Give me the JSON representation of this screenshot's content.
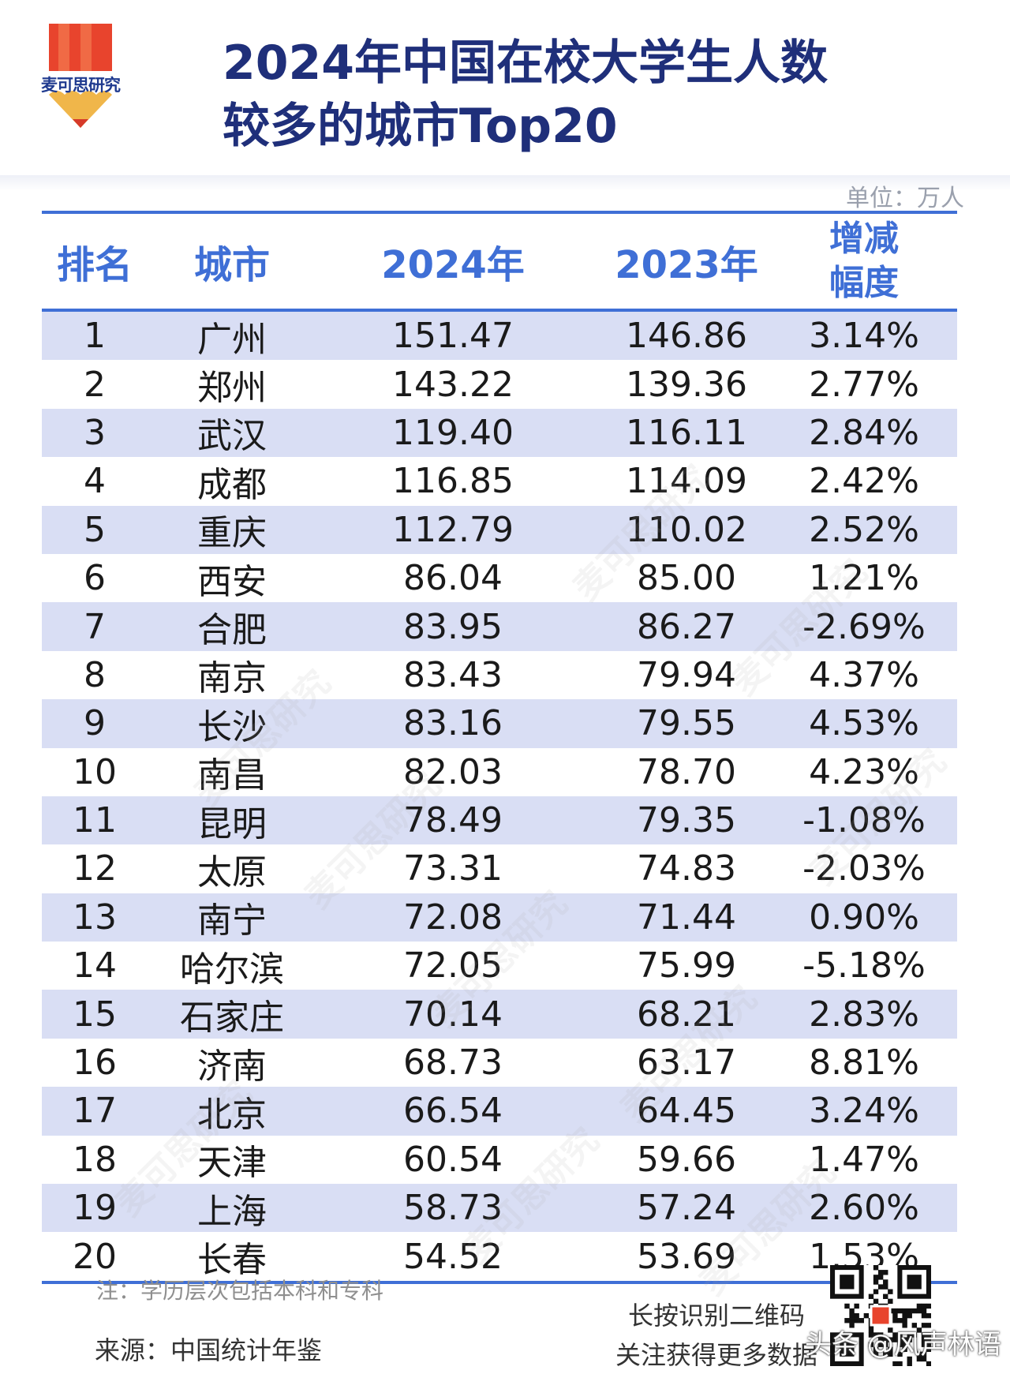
{
  "brand": {
    "logo_text": "麦可思研究",
    "colors": {
      "logo_top": "#e8442d",
      "logo_mid": "#f0b64a",
      "logo_tip": "#d63a2a",
      "accent": "#3f6fd6",
      "title": "#1f2f7a",
      "row_shade": "#d9def4"
    }
  },
  "header": {
    "title_line1": "2024年中国在校大学生人数",
    "title_line2": "较多的城市Top20",
    "unit": "单位：万人"
  },
  "table": {
    "columns": [
      "排名",
      "城市",
      "2024年",
      "2023年",
      "增减幅度"
    ],
    "change_header_line1": "增减",
    "change_header_line2": "幅度",
    "rows": [
      {
        "rank": "1",
        "city": "广州",
        "y2024": "151.47",
        "y2023": "146.86",
        "change": "3.14%"
      },
      {
        "rank": "2",
        "city": "郑州",
        "y2024": "143.22",
        "y2023": "139.36",
        "change": "2.77%"
      },
      {
        "rank": "3",
        "city": "武汉",
        "y2024": "119.40",
        "y2023": "116.11",
        "change": "2.84%"
      },
      {
        "rank": "4",
        "city": "成都",
        "y2024": "116.85",
        "y2023": "114.09",
        "change": "2.42%"
      },
      {
        "rank": "5",
        "city": "重庆",
        "y2024": "112.79",
        "y2023": "110.02",
        "change": "2.52%"
      },
      {
        "rank": "6",
        "city": "西安",
        "y2024": "86.04",
        "y2023": "85.00",
        "change": "1.21%"
      },
      {
        "rank": "7",
        "city": "合肥",
        "y2024": "83.95",
        "y2023": "86.27",
        "change": "-2.69%"
      },
      {
        "rank": "8",
        "city": "南京",
        "y2024": "83.43",
        "y2023": "79.94",
        "change": "4.37%"
      },
      {
        "rank": "9",
        "city": "长沙",
        "y2024": "83.16",
        "y2023": "79.55",
        "change": "4.53%"
      },
      {
        "rank": "10",
        "city": "南昌",
        "y2024": "82.03",
        "y2023": "78.70",
        "change": "4.23%"
      },
      {
        "rank": "11",
        "city": "昆明",
        "y2024": "78.49",
        "y2023": "79.35",
        "change": "-1.08%"
      },
      {
        "rank": "12",
        "city": "太原",
        "y2024": "73.31",
        "y2023": "74.83",
        "change": "-2.03%"
      },
      {
        "rank": "13",
        "city": "南宁",
        "y2024": "72.08",
        "y2023": "71.44",
        "change": "0.90%"
      },
      {
        "rank": "14",
        "city": "哈尔滨",
        "y2024": "72.05",
        "y2023": "75.99",
        "change": "-5.18%"
      },
      {
        "rank": "15",
        "city": "石家庄",
        "y2024": "70.14",
        "y2023": "68.21",
        "change": "2.83%"
      },
      {
        "rank": "16",
        "city": "济南",
        "y2024": "68.73",
        "y2023": "63.17",
        "change": "8.81%"
      },
      {
        "rank": "17",
        "city": "北京",
        "y2024": "66.54",
        "y2023": "64.45",
        "change": "3.24%"
      },
      {
        "rank": "18",
        "city": "天津",
        "y2024": "60.54",
        "y2023": "59.66",
        "change": "1.47%"
      },
      {
        "rank": "19",
        "city": "上海",
        "y2024": "58.73",
        "y2023": "57.24",
        "change": "2.60%"
      },
      {
        "rank": "20",
        "city": "长春",
        "y2024": "54.52",
        "y2023": "53.69",
        "change": "1.53%"
      }
    ]
  },
  "footer": {
    "note": "注：学历层次包括本科和专科",
    "source": "来源：中国统计年鉴",
    "qr_line1": "长按识别二维码",
    "qr_line2": "关注获得更多数据",
    "qr_icon": "qr-code-icon",
    "byline": "头条 @风声林语"
  },
  "watermark": "麦可思研究"
}
